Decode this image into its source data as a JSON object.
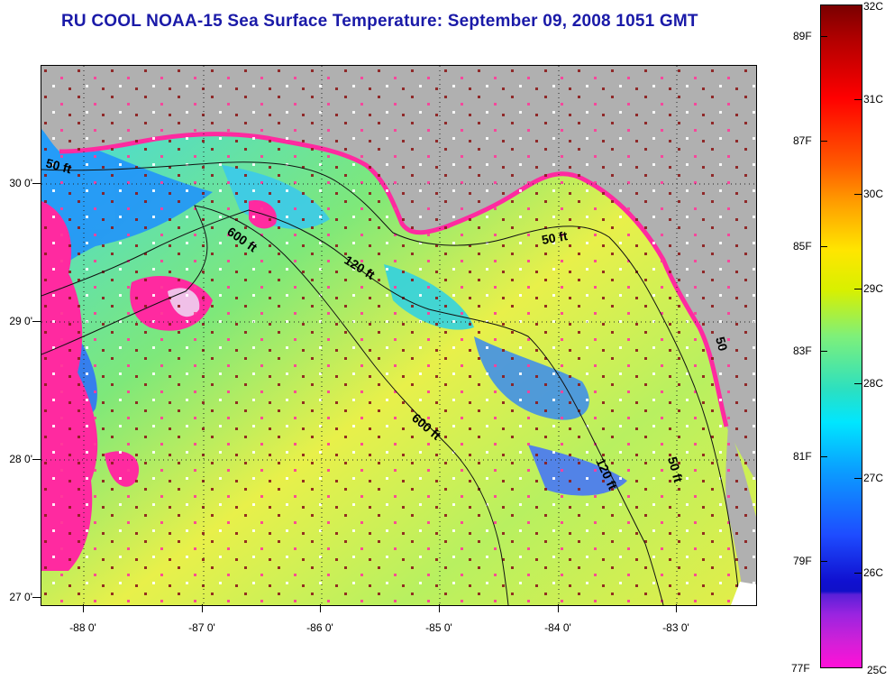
{
  "title": "RU COOL  NOAA-15  Sea Surface Temperature:  September 09, 2008 1051 GMT",
  "map": {
    "y_axis_labels": [
      "30 0'",
      "29 0'",
      "28 0'",
      "27 0'"
    ],
    "x_axis_labels": [
      "-88 0'",
      "-87 0'",
      "-86 0'",
      "-85 0'",
      "-84 0'",
      "-83 0'"
    ],
    "contour_labels": [
      "50 ft",
      "600 ft",
      "120 ft",
      "50 ft",
      "600 ft",
      "120 ft",
      "50 ft",
      "50"
    ],
    "colors": {
      "land": "#b0b0b0",
      "cloud_mask": "#ff2aa0",
      "missing": "#ffffff",
      "ocean_warm": "#f0f040",
      "ocean_mid": "#7ef07a",
      "ocean_cool": "#2ad0ff"
    }
  },
  "colorbar": {
    "celsius": [
      "32C",
      "31C",
      "30C",
      "29C",
      "28C",
      "27C",
      "26C",
      "25C"
    ],
    "fahrenheit": [
      "89F",
      "87F",
      "85F",
      "83F",
      "81F",
      "79F",
      "77F"
    ]
  }
}
